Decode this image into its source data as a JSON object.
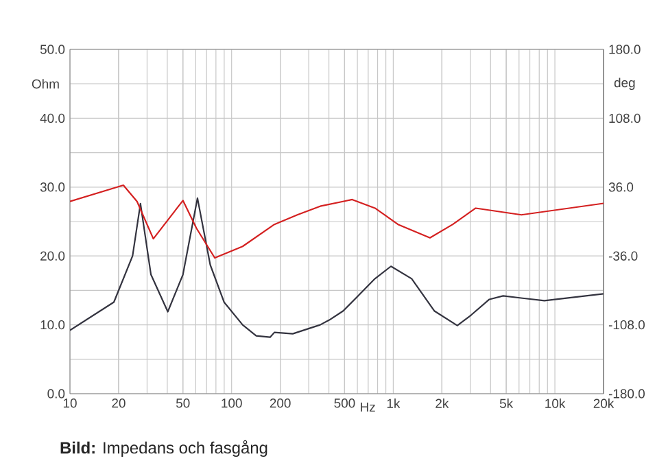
{
  "chart_data": {
    "type": "line",
    "xlabel": "Hz",
    "ylabel": "Ohm",
    "y2label": "deg",
    "log": "x",
    "grid": true,
    "xlim": [
      10,
      20000
    ],
    "ylim": [
      0,
      50
    ],
    "y2lim": [
      -180,
      180
    ],
    "xticks": [
      10,
      20,
      50,
      100,
      200,
      500,
      {
        "value": 1000,
        "label": "1k"
      },
      {
        "value": 2000,
        "label": "2k"
      },
      {
        "value": 5000,
        "label": "5k"
      },
      {
        "value": 10000,
        "label": "10k"
      },
      {
        "value": 20000,
        "label": "20k"
      }
    ],
    "yticks": [
      {
        "value": 0,
        "label": "0.0"
      },
      {
        "value": 5,
        "label": null
      },
      {
        "value": 10,
        "label": "10.0"
      },
      {
        "value": 15,
        "label": null
      },
      {
        "value": 20,
        "label": "20.0"
      },
      {
        "value": 25,
        "label": null
      },
      {
        "value": 30,
        "label": "30.0"
      },
      {
        "value": 35,
        "label": null
      },
      {
        "value": 40,
        "label": "40.0"
      },
      {
        "value": 45,
        "label": null
      },
      {
        "value": 50,
        "label": "50.0"
      }
    ],
    "y2ticks": [
      {
        "value": -180,
        "label": "-180.0"
      },
      {
        "value": -144,
        "label": null
      },
      {
        "value": -108,
        "label": "-108.0"
      },
      {
        "value": -72,
        "label": null
      },
      {
        "value": -36,
        "label": "-36.0"
      },
      {
        "value": 0,
        "label": null
      },
      {
        "value": 36,
        "label": "36.0"
      },
      {
        "value": 72,
        "label": null
      },
      {
        "value": 108,
        "label": "108.0"
      },
      {
        "value": 144,
        "label": null
      },
      {
        "value": 180,
        "label": "180.0"
      }
    ],
    "series": [
      {
        "color": "#33333f",
        "x": [
          10,
          18.7,
          24.4,
          27.3,
          31.7,
          40.3,
          50,
          61.5,
          73.8,
          89.8,
          117,
          142,
          173,
          184,
          239,
          353,
          402,
          489,
          594,
          771,
          968,
          1300,
          1800,
          2490,
          3027,
          3933,
          4786,
          8610,
          20000
        ],
        "values": [
          9.2,
          13.3,
          20.0,
          27.6,
          17.3,
          11.9,
          17.3,
          28.4,
          18.7,
          13.3,
          10.0,
          8.4,
          8.2,
          8.9,
          8.7,
          10.0,
          10.7,
          12.0,
          14.0,
          16.7,
          18.5,
          16.7,
          12.0,
          9.9,
          11.4,
          13.7,
          14.2,
          13.5,
          14.5
        ]
      },
      {
        "color": "#d42020",
        "axis": "y2",
        "x": [
          10,
          21.4,
          26,
          32.8,
          50,
          60.6,
          78.7,
          117,
          184,
          255,
          353,
          489,
          557,
          771,
          1070,
          1687,
          2335,
          3237,
          6209,
          20000
        ],
        "values": [
          21,
          38,
          21,
          -18,
          22,
          -7,
          -38,
          -26,
          -3,
          7,
          16,
          21,
          23,
          14,
          -3,
          -17,
          -3,
          14,
          7,
          19
        ]
      }
    ],
    "annotations": [
      "**Bild:** Impedans och fasgång"
    ]
  }
}
